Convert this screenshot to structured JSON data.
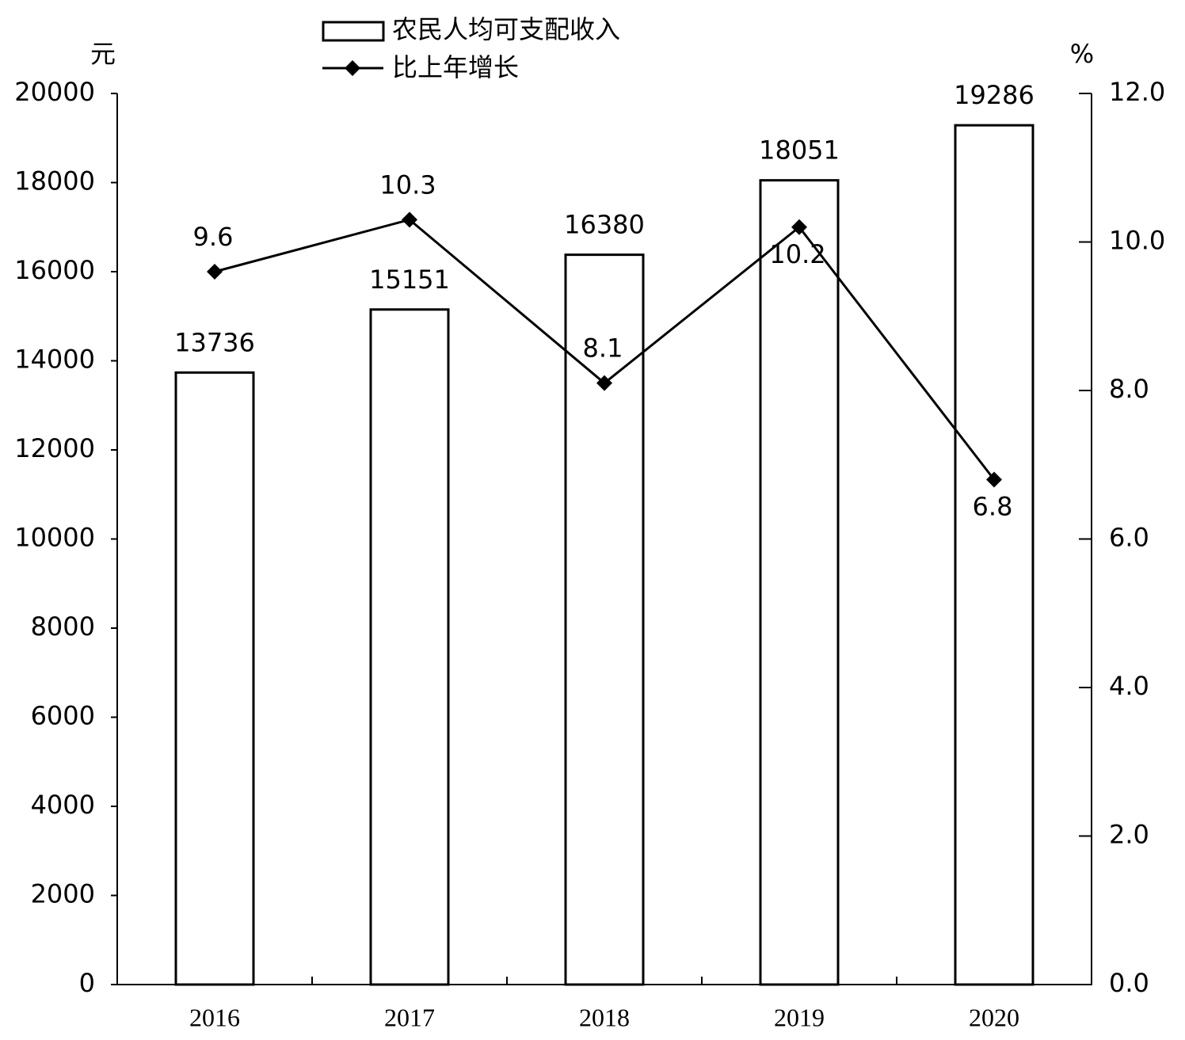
{
  "chart_data": {
    "type": "bar",
    "y_unit": "元",
    "y2_unit": "%",
    "categories": [
      "2016",
      "2017",
      "2018",
      "2019",
      "2020"
    ],
    "series": [
      {
        "name": "农民人均可支配收入",
        "type": "bar",
        "color": "#000000",
        "values": [
          13736,
          15151,
          16380,
          18051,
          19286
        ]
      },
      {
        "name": "比上年增长",
        "type": "line",
        "axis": "y2",
        "color": "#000000",
        "values": [
          9.6,
          10.3,
          8.1,
          10.2,
          6.8
        ]
      }
    ],
    "ylim": [
      0,
      20000
    ],
    "yticks": [
      0,
      2000,
      4000,
      6000,
      8000,
      10000,
      12000,
      14000,
      16000,
      18000,
      20000
    ],
    "y2lim": [
      0,
      12
    ],
    "y2ticks": [
      {
        "value": 0,
        "label": "0.0"
      },
      {
        "value": 2,
        "label": "2.0"
      },
      {
        "value": 4,
        "label": "4.0"
      },
      {
        "value": 6,
        "label": "6.0"
      },
      {
        "value": 8,
        "label": "8.0"
      },
      {
        "value": 10,
        "label": "10.0"
      },
      {
        "value": 12,
        "label": "12.0"
      }
    ],
    "grid": false
  }
}
